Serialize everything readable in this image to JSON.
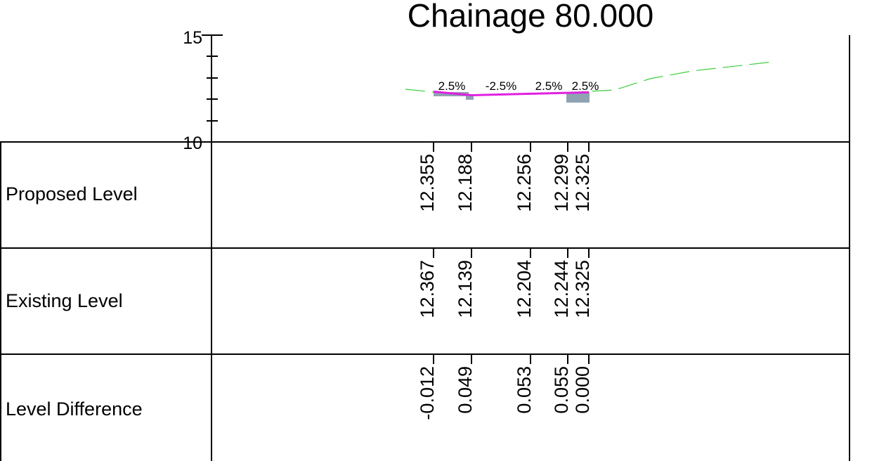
{
  "title": "Chainage 80.000",
  "axis": {
    "ticks": [
      "15",
      "10"
    ]
  },
  "slopes": [
    "2.5%",
    "-2.5%",
    "2.5%",
    "2.5%"
  ],
  "rows": [
    {
      "label": "Proposed Level",
      "values": [
        "12.355",
        "12.188",
        "12.256",
        "12.299",
        "12.325"
      ]
    },
    {
      "label": "Existing Level",
      "values": [
        "12.367",
        "12.139",
        "12.204",
        "12.244",
        "12.325"
      ]
    },
    {
      "label": "Level Difference",
      "values": [
        "-0.012",
        "0.049",
        "0.053",
        "0.055",
        "0.000"
      ]
    }
  ]
}
